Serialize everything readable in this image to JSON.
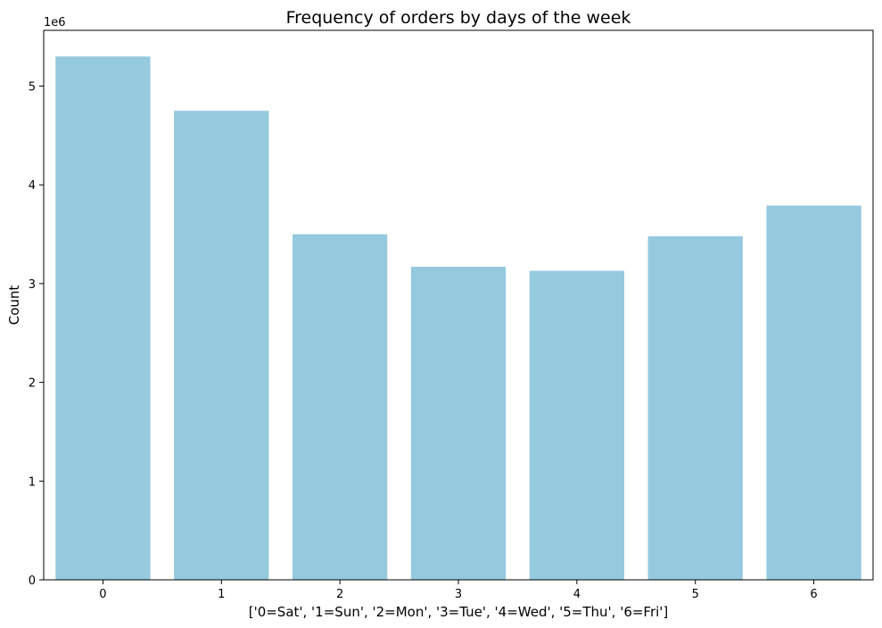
{
  "chart_data": {
    "type": "bar",
    "title": "Frequency of orders by days of the week",
    "xlabel": "['0=Sat', '1=Sun', '2=Mon', '3=Tue', '4=Wed', '5=Thu', '6=Fri']",
    "ylabel": "Count",
    "y_offset_label": "1e6",
    "categories": [
      "0",
      "1",
      "2",
      "3",
      "4",
      "5",
      "6"
    ],
    "values": [
      5300000,
      4750000,
      3500000,
      3170000,
      3130000,
      3480000,
      3790000
    ],
    "ylim": [
      0,
      5565000
    ],
    "yticks": [
      0,
      1000000,
      2000000,
      3000000,
      4000000,
      5000000
    ],
    "ytick_labels": [
      "0",
      "1",
      "2",
      "3",
      "4",
      "5"
    ],
    "grid": false,
    "bar_color": "#95c9de"
  }
}
